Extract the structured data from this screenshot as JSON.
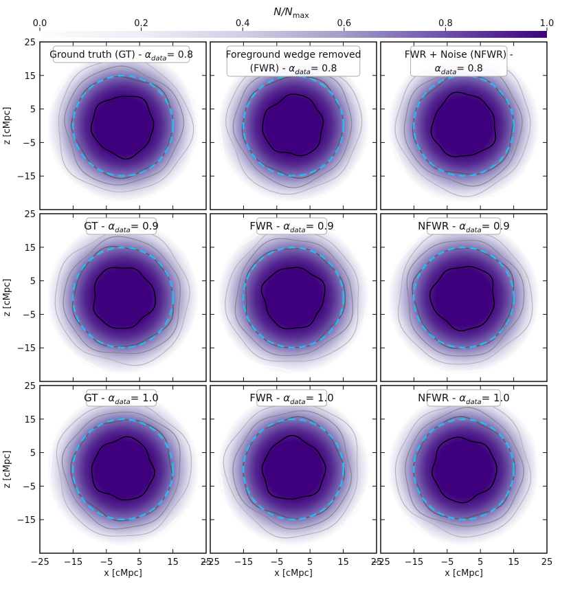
{
  "chart_data": {
    "type": "heatmap",
    "grid": "3x3",
    "colorbar": {
      "label_main": "N/N",
      "label_sub": "max",
      "range": [
        0.0,
        1.0
      ],
      "ticks": [
        "0.0",
        "0.2",
        "0.4",
        "0.6",
        "0.8",
        "1.0"
      ],
      "colormap": "Purples"
    },
    "x_axis": {
      "label": "x [cMpc]",
      "range": [
        -25,
        25
      ],
      "ticks": [
        "−25",
        "−15",
        "−5",
        "5",
        "15",
        "25"
      ]
    },
    "y_axis": {
      "label": "z [cMpc]",
      "range": [
        -25,
        25
      ],
      "ticks": [
        "25",
        "15",
        "5",
        "−5",
        "−15"
      ]
    },
    "contour_levels": [
      {
        "name": "level-1",
        "color": "#000000",
        "approx_radius_cmpc": 9
      },
      {
        "name": "level-2",
        "color": "#555555",
        "approx_radius_cmpc": 15
      },
      {
        "name": "level-3",
        "color": "#888888",
        "approx_radius_cmpc": 17.5
      },
      {
        "name": "level-4",
        "color": "#b5b5b5",
        "approx_radius_cmpc": 20
      },
      {
        "name": "level-5",
        "color": "#ffffff",
        "approx_radius_cmpc": 23
      }
    ],
    "reference_circle": {
      "style": "dashed",
      "color": "#2cb7f0",
      "radius_cmpc": 15
    },
    "panels": [
      {
        "title_lines": [
          "Ground truth (GT) - α_data = 0.8"
        ],
        "alpha": 0.8,
        "variant": "GT",
        "core_radius": 9.2,
        "box_x": [
          -21,
          20
        ],
        "box_y": [
          -17,
          24
        ]
      },
      {
        "title_lines": [
          "Foreground wedge removed",
          "(FWR) - α_data = 0.8"
        ],
        "alpha": 0.8,
        "variant": "FWR",
        "core_radius": 9.0,
        "box_x": [
          -20,
          20
        ],
        "box_y": [
          -17,
          22
        ]
      },
      {
        "title_lines": [
          "FWR + Noise (NFWR) -",
          "α_data = 0.8"
        ],
        "alpha": 0.8,
        "variant": "NFWR",
        "core_radius": 9.5,
        "box_x": [
          -16,
          13
        ],
        "box_y": [
          -17,
          21
        ]
      },
      {
        "title_lines": [
          "GT - α_data = 0.9"
        ],
        "alpha": 0.9,
        "variant": "GT",
        "core_radius": 9.2,
        "box_x": [
          -11,
          10
        ],
        "box_y": [
          19,
          24
        ]
      },
      {
        "title_lines": [
          "FWR - α_data = 0.9"
        ],
        "alpha": 0.9,
        "variant": "FWR",
        "core_radius": 9.2,
        "box_x": [
          -11,
          10
        ],
        "box_y": [
          19,
          24
        ]
      },
      {
        "title_lines": [
          "NFWR - α_data = 0.9"
        ],
        "alpha": 0.9,
        "variant": "NFWR",
        "core_radius": 9.5,
        "box_x": [
          -11,
          11
        ],
        "box_y": [
          19,
          24
        ]
      },
      {
        "title_lines": [
          "GT - α_data = 1.0"
        ],
        "alpha": 1.0,
        "variant": "GT",
        "core_radius": 9.2,
        "box_x": [
          -11,
          10
        ],
        "box_y": [
          19,
          24
        ]
      },
      {
        "title_lines": [
          "FWR - α_data = 1.0"
        ],
        "alpha": 1.0,
        "variant": "FWR",
        "core_radius": 9.3,
        "box_x": [
          -11,
          10
        ],
        "box_y": [
          19,
          24
        ]
      },
      {
        "title_lines": [
          "NFWR - α_data = 1.0"
        ],
        "alpha": 1.0,
        "variant": "NFWR",
        "core_radius": 9.5,
        "box_x": [
          -11,
          11
        ],
        "box_y": [
          19,
          24
        ]
      }
    ]
  }
}
